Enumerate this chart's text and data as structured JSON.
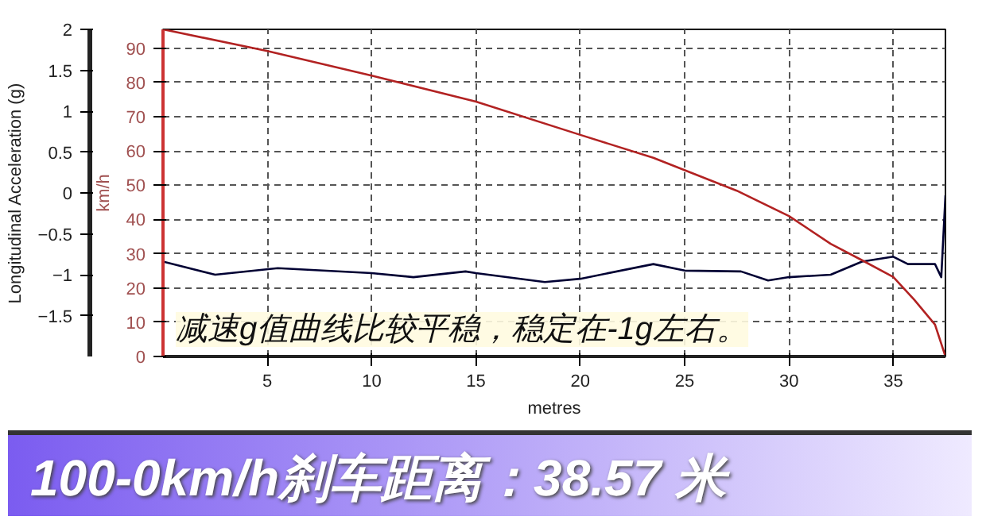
{
  "chart_data": {
    "type": "line",
    "title": "100-0km/h刹车距离：38.57 米",
    "xlabel": "metres",
    "ylabel": "Longitudinal Acceleration (g)",
    "y2label": "km/h",
    "annotations": [
      "减速g值曲线比较平稳，稳定在-1g左右。"
    ],
    "xlim": [
      0,
      37.5
    ],
    "xticks": [
      5,
      10,
      15,
      20,
      25,
      30,
      35
    ],
    "ylim": [
      -2,
      2
    ],
    "yticks": [
      -1.5,
      -1,
      -0.5,
      0,
      0.5,
      1,
      1.5,
      2
    ],
    "y2lim": [
      0,
      95.5
    ],
    "y2ticks": [
      0,
      10,
      20,
      30,
      40,
      50,
      60,
      70,
      80,
      90
    ],
    "grid": true,
    "line_style": "solid",
    "series": [
      {
        "color": "#000033",
        "x": [
          0,
          2.5,
          5.5,
          10,
          12,
          14.5,
          15,
          18.3,
          20,
          23.5,
          25,
          27.7,
          29,
          30,
          32,
          33.5,
          35,
          35.7,
          37,
          37.3,
          37.5
        ],
        "values": [
          -0.84,
          -1.0,
          -0.92,
          -0.98,
          -1.03,
          -0.96,
          -0.98,
          -1.09,
          -1.05,
          -0.87,
          -0.95,
          -0.96,
          -1.07,
          -1.03,
          -1.0,
          -0.84,
          -0.78,
          -0.87,
          -0.87,
          -1.03,
          -0.03
        ]
      },
      {
        "color": "#b22222",
        "axis": "y2",
        "x": [
          0,
          5,
          10,
          15,
          20,
          23.5,
          27.5,
          30,
          32,
          33.5,
          35,
          36,
          37,
          37.5
        ],
        "values": [
          95.5,
          89.2,
          82,
          74.4,
          64.7,
          58,
          48.4,
          41,
          32.9,
          28.1,
          23.2,
          16.6,
          9.3,
          0
        ]
      }
    ]
  }
}
